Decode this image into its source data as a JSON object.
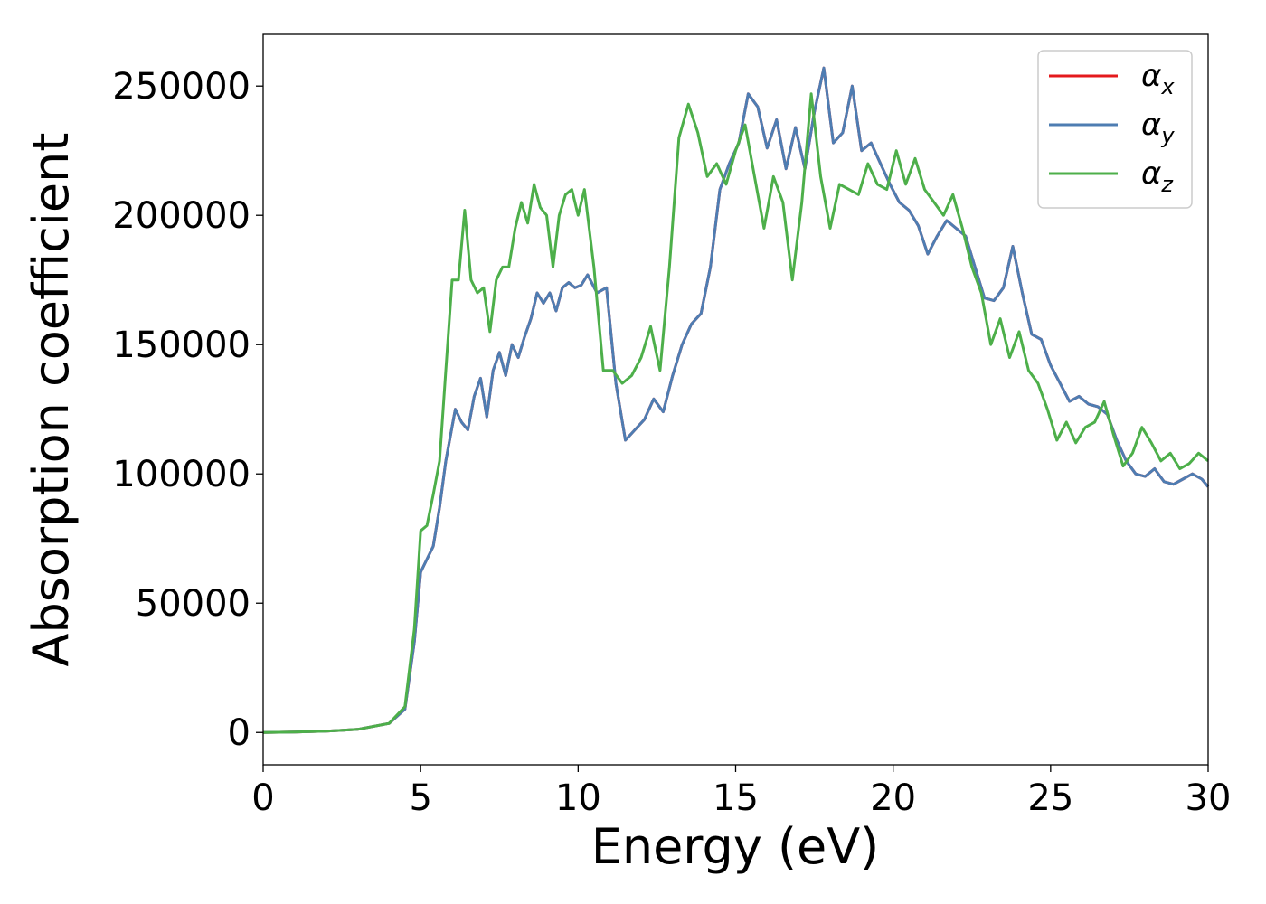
{
  "chart_data": {
    "type": "line",
    "title": "",
    "xlabel": "Energy (eV)",
    "ylabel": "Absorption coefficient",
    "xlim": [
      0,
      30
    ],
    "ylim": [
      -12500,
      270000
    ],
    "xticks": [
      0,
      5,
      10,
      15,
      20,
      25,
      30
    ],
    "yticks": [
      0,
      50000,
      100000,
      150000,
      200000,
      250000
    ],
    "grid": false,
    "legend_position": "top-right",
    "series": [
      {
        "name": "αx",
        "name_base": "α",
        "name_sub": "x",
        "color": "#e41a1c",
        "x": [
          0,
          1,
          2,
          3,
          4,
          4.5,
          4.8,
          5.0,
          5.2,
          5.4,
          5.6,
          5.8,
          6.1,
          6.3,
          6.5,
          6.7,
          6.9,
          7.1,
          7.3,
          7.5,
          7.7,
          7.9,
          8.1,
          8.3,
          8.5,
          8.7,
          8.9,
          9.1,
          9.3,
          9.5,
          9.7,
          9.9,
          10.1,
          10.3,
          10.6,
          10.9,
          11.2,
          11.5,
          11.8,
          12.1,
          12.4,
          12.7,
          13.0,
          13.3,
          13.6,
          13.9,
          14.2,
          14.5,
          14.8,
          15.1,
          15.4,
          15.7,
          16.0,
          16.3,
          16.6,
          16.9,
          17.2,
          17.5,
          17.8,
          18.1,
          18.4,
          18.7,
          19.0,
          19.3,
          19.6,
          19.9,
          20.2,
          20.5,
          20.8,
          21.1,
          21.4,
          21.7,
          22.0,
          22.3,
          22.6,
          22.9,
          23.2,
          23.5,
          23.8,
          24.1,
          24.4,
          24.7,
          25.0,
          25.3,
          25.6,
          25.9,
          26.2,
          26.5,
          26.8,
          27.1,
          27.4,
          27.7,
          28.0,
          28.3,
          28.6,
          28.9,
          29.2,
          29.5,
          29.8,
          30.0
        ],
        "y": [
          0,
          200,
          500,
          1200,
          3500,
          9000,
          35000,
          62000,
          67000,
          72000,
          87000,
          105000,
          125000,
          120000,
          117000,
          130000,
          137000,
          122000,
          140000,
          147000,
          138000,
          150000,
          145000,
          153000,
          160000,
          170000,
          166000,
          170000,
          163000,
          172000,
          174000,
          172000,
          173000,
          177000,
          170000,
          172000,
          135000,
          113000,
          117000,
          121000,
          129000,
          124000,
          138000,
          150000,
          158000,
          162000,
          180000,
          210000,
          220000,
          228000,
          247000,
          242000,
          226000,
          237000,
          218000,
          234000,
          218000,
          240000,
          257000,
          228000,
          232000,
          250000,
          225000,
          228000,
          220000,
          212000,
          205000,
          202000,
          196000,
          185000,
          192000,
          198000,
          195000,
          192000,
          180000,
          168000,
          167000,
          172000,
          188000,
          170000,
          154000,
          152000,
          142000,
          135000,
          128000,
          130000,
          127000,
          126000,
          123000,
          113000,
          105000,
          100000,
          99000,
          102000,
          97000,
          96000,
          98000,
          100000,
          98000,
          95000
        ]
      },
      {
        "name": "αy",
        "name_base": "α",
        "name_sub": "y",
        "color": "#4e7db2",
        "x": [
          0,
          1,
          2,
          3,
          4,
          4.5,
          4.8,
          5.0,
          5.2,
          5.4,
          5.6,
          5.8,
          6.1,
          6.3,
          6.5,
          6.7,
          6.9,
          7.1,
          7.3,
          7.5,
          7.7,
          7.9,
          8.1,
          8.3,
          8.5,
          8.7,
          8.9,
          9.1,
          9.3,
          9.5,
          9.7,
          9.9,
          10.1,
          10.3,
          10.6,
          10.9,
          11.2,
          11.5,
          11.8,
          12.1,
          12.4,
          12.7,
          13.0,
          13.3,
          13.6,
          13.9,
          14.2,
          14.5,
          14.8,
          15.1,
          15.4,
          15.7,
          16.0,
          16.3,
          16.6,
          16.9,
          17.2,
          17.5,
          17.8,
          18.1,
          18.4,
          18.7,
          19.0,
          19.3,
          19.6,
          19.9,
          20.2,
          20.5,
          20.8,
          21.1,
          21.4,
          21.7,
          22.0,
          22.3,
          22.6,
          22.9,
          23.2,
          23.5,
          23.8,
          24.1,
          24.4,
          24.7,
          25.0,
          25.3,
          25.6,
          25.9,
          26.2,
          26.5,
          26.8,
          27.1,
          27.4,
          27.7,
          28.0,
          28.3,
          28.6,
          28.9,
          29.2,
          29.5,
          29.8,
          30.0
        ],
        "y": [
          0,
          200,
          500,
          1200,
          3500,
          9000,
          35000,
          62000,
          67000,
          72000,
          87000,
          105000,
          125000,
          120000,
          117000,
          130000,
          137000,
          122000,
          140000,
          147000,
          138000,
          150000,
          145000,
          153000,
          160000,
          170000,
          166000,
          170000,
          163000,
          172000,
          174000,
          172000,
          173000,
          177000,
          170000,
          172000,
          135000,
          113000,
          117000,
          121000,
          129000,
          124000,
          138000,
          150000,
          158000,
          162000,
          180000,
          210000,
          220000,
          228000,
          247000,
          242000,
          226000,
          237000,
          218000,
          234000,
          218000,
          240000,
          257000,
          228000,
          232000,
          250000,
          225000,
          228000,
          220000,
          212000,
          205000,
          202000,
          196000,
          185000,
          192000,
          198000,
          195000,
          192000,
          180000,
          168000,
          167000,
          172000,
          188000,
          170000,
          154000,
          152000,
          142000,
          135000,
          128000,
          130000,
          127000,
          126000,
          123000,
          113000,
          105000,
          100000,
          99000,
          102000,
          97000,
          96000,
          98000,
          100000,
          98000,
          95000
        ]
      },
      {
        "name": "αz",
        "name_base": "α",
        "name_sub": "z",
        "color": "#4daf4a",
        "x": [
          0,
          1,
          2,
          3,
          4,
          4.5,
          4.8,
          5.0,
          5.2,
          5.4,
          5.6,
          5.8,
          6.0,
          6.2,
          6.4,
          6.6,
          6.8,
          7.0,
          7.2,
          7.4,
          7.6,
          7.8,
          8.0,
          8.2,
          8.4,
          8.6,
          8.8,
          9.0,
          9.2,
          9.4,
          9.6,
          9.8,
          10.0,
          10.2,
          10.5,
          10.8,
          11.1,
          11.4,
          11.7,
          12.0,
          12.3,
          12.6,
          12.9,
          13.2,
          13.5,
          13.8,
          14.1,
          14.4,
          14.7,
          15.0,
          15.3,
          15.6,
          15.9,
          16.2,
          16.5,
          16.8,
          17.1,
          17.4,
          17.7,
          18.0,
          18.3,
          18.6,
          18.9,
          19.2,
          19.5,
          19.8,
          20.1,
          20.4,
          20.7,
          21.0,
          21.3,
          21.6,
          21.9,
          22.2,
          22.5,
          22.8,
          23.1,
          23.4,
          23.7,
          24.0,
          24.3,
          24.6,
          24.9,
          25.2,
          25.5,
          25.8,
          26.1,
          26.4,
          26.7,
          27.0,
          27.3,
          27.6,
          27.9,
          28.2,
          28.5,
          28.8,
          29.1,
          29.4,
          29.7,
          30.0
        ],
        "y": [
          0,
          200,
          500,
          1200,
          3500,
          10000,
          40000,
          78000,
          80000,
          92000,
          105000,
          140000,
          175000,
          175000,
          202000,
          175000,
          170000,
          172000,
          155000,
          175000,
          180000,
          180000,
          195000,
          205000,
          197000,
          212000,
          203000,
          200000,
          180000,
          200000,
          208000,
          210000,
          200000,
          210000,
          180000,
          140000,
          140000,
          135000,
          138000,
          145000,
          157000,
          140000,
          180000,
          230000,
          243000,
          232000,
          215000,
          220000,
          212000,
          225000,
          235000,
          215000,
          195000,
          215000,
          205000,
          175000,
          205000,
          247000,
          215000,
          195000,
          212000,
          210000,
          208000,
          220000,
          212000,
          210000,
          225000,
          212000,
          222000,
          210000,
          205000,
          200000,
          208000,
          195000,
          180000,
          170000,
          150000,
          160000,
          145000,
          155000,
          140000,
          135000,
          125000,
          113000,
          120000,
          112000,
          118000,
          120000,
          128000,
          115000,
          103000,
          108000,
          118000,
          112000,
          105000,
          108000,
          102000,
          104000,
          108000,
          105000
        ]
      }
    ]
  }
}
